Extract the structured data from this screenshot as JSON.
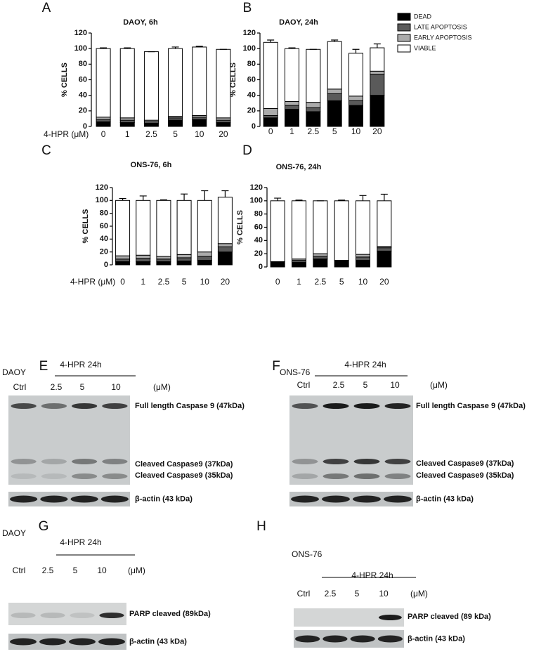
{
  "legend": [
    {
      "name": "DEAD",
      "color": "#000000"
    },
    {
      "name": "LATE APOPTOSIS",
      "color": "#5a5a5a"
    },
    {
      "name": "EARLY APOPTOSIS",
      "color": "#ababab"
    },
    {
      "name": "VIABLE",
      "color": "#ffffff"
    }
  ],
  "chart_data": [
    {
      "type": "bar",
      "label": "A",
      "title": "DAOY, 6h",
      "xlabel": "4-HPR (μM)",
      "ylabel": "% CELLS",
      "categories": [
        "0",
        "1",
        "2.5",
        "5",
        "10",
        "20"
      ],
      "ylim": [
        0,
        120
      ],
      "yticks": [
        0,
        20,
        40,
        60,
        80,
        100,
        120
      ],
      "series": [
        {
          "values": [
            6,
            5,
            4,
            8,
            9,
            5
          ]
        },
        {
          "values": [
            3,
            3,
            2,
            3,
            3,
            3
          ]
        },
        {
          "values": [
            3,
            3,
            2,
            2,
            2,
            3
          ]
        },
        {
          "values": [
            88,
            89,
            88,
            87,
            88,
            88
          ],
          "errors": [
            1,
            1,
            0,
            2,
            1,
            0
          ]
        }
      ]
    },
    {
      "type": "bar",
      "label": "B",
      "title": "DAOY, 24h",
      "ylabel": "% CELLS",
      "categories": [
        "0",
        "1",
        "2.5",
        "5",
        "10",
        "20"
      ],
      "ylim": [
        0,
        120
      ],
      "yticks": [
        0,
        20,
        40,
        60,
        80,
        100,
        120
      ],
      "series": [
        {
          "values": [
            11,
            22,
            19,
            33,
            27,
            40
          ]
        },
        {
          "values": [
            3,
            5,
            5,
            9,
            6,
            27
          ]
        },
        {
          "values": [
            9,
            5,
            7,
            6,
            6,
            4
          ]
        },
        {
          "values": [
            85,
            68,
            68,
            61,
            55,
            30
          ],
          "errors": [
            3,
            1,
            0,
            2,
            5,
            5
          ]
        }
      ]
    },
    {
      "type": "bar",
      "label": "C",
      "title": "ONS-76, 6h",
      "xlabel": "4-HPR (μM)",
      "ylabel": "% CELLS",
      "categories": [
        "0",
        "1",
        "2.5",
        "5",
        "10",
        "20"
      ],
      "ylim": [
        0,
        120
      ],
      "yticks": [
        0,
        20,
        40,
        60,
        80,
        100,
        120
      ],
      "series": [
        {
          "values": [
            5,
            5,
            5,
            6,
            7,
            20
          ]
        },
        {
          "values": [
            4,
            5,
            4,
            5,
            6,
            8
          ]
        },
        {
          "values": [
            5,
            5,
            4,
            5,
            7,
            5
          ]
        },
        {
          "values": [
            86,
            85,
            87,
            84,
            80,
            72
          ],
          "errors": [
            3,
            7,
            1,
            10,
            15,
            10
          ]
        }
      ]
    },
    {
      "type": "bar",
      "label": "D",
      "title": "ONS-76, 24h",
      "ylabel": "% CELLS",
      "categories": [
        "0",
        "1",
        "2.5",
        "5",
        "10",
        "20"
      ],
      "ylim": [
        0,
        120
      ],
      "yticks": [
        0,
        20,
        40,
        60,
        80,
        100,
        120
      ],
      "series": [
        {
          "values": [
            8,
            7,
            12,
            10,
            10,
            24
          ]
        },
        {
          "values": [
            0,
            3,
            4,
            0,
            5,
            5
          ]
        },
        {
          "values": [
            0,
            2,
            4,
            0,
            4,
            2
          ]
        },
        {
          "values": [
            92,
            88,
            80,
            90,
            81,
            69
          ],
          "errors": [
            4,
            1,
            0,
            1,
            8,
            10
          ]
        }
      ]
    }
  ],
  "blots": [
    {
      "label": "E",
      "cell_line": "DAOY",
      "treatment": "4-HPR 24h",
      "lanes": [
        "Ctrl",
        "2.5",
        "5",
        "10"
      ],
      "unit": "(μM)",
      "bands": [
        "Full length Caspase 9 (47kDa)",
        "Cleaved Caspase9 (37kDa)",
        "Cleaved Caspase9 (35kDa)"
      ],
      "loading": "β-actin (43 kDa)"
    },
    {
      "label": "F",
      "cell_line": "ONS-76",
      "treatment": "4-HPR 24h",
      "lanes": [
        "Ctrl",
        "2.5",
        "5",
        "10"
      ],
      "unit": "(μM)",
      "bands": [
        "Full length Caspase 9 (47kDa)",
        "Cleaved Caspase9 (37kDa)",
        "Cleaved Caspase9 (35kDa)"
      ],
      "loading": "β-actin (43 kDa)"
    },
    {
      "label": "G",
      "cell_line": "DAOY",
      "treatment": "4-HPR 24h",
      "lanes": [
        "Ctrl",
        "2.5",
        "5",
        "10"
      ],
      "unit": "(μM)",
      "bands": [
        "PARP cleaved (89kDa)"
      ],
      "loading": "β-actin (43 kDa)"
    },
    {
      "label": "H",
      "cell_line": "ONS-76",
      "treatment": "4-HPR 24h",
      "lanes": [
        "Ctrl",
        "2.5",
        "5",
        "10"
      ],
      "unit": "(μM)",
      "bands": [
        "PARP cleaved  (89 kDa)"
      ],
      "loading": "β-actin (43 kDa)"
    }
  ]
}
